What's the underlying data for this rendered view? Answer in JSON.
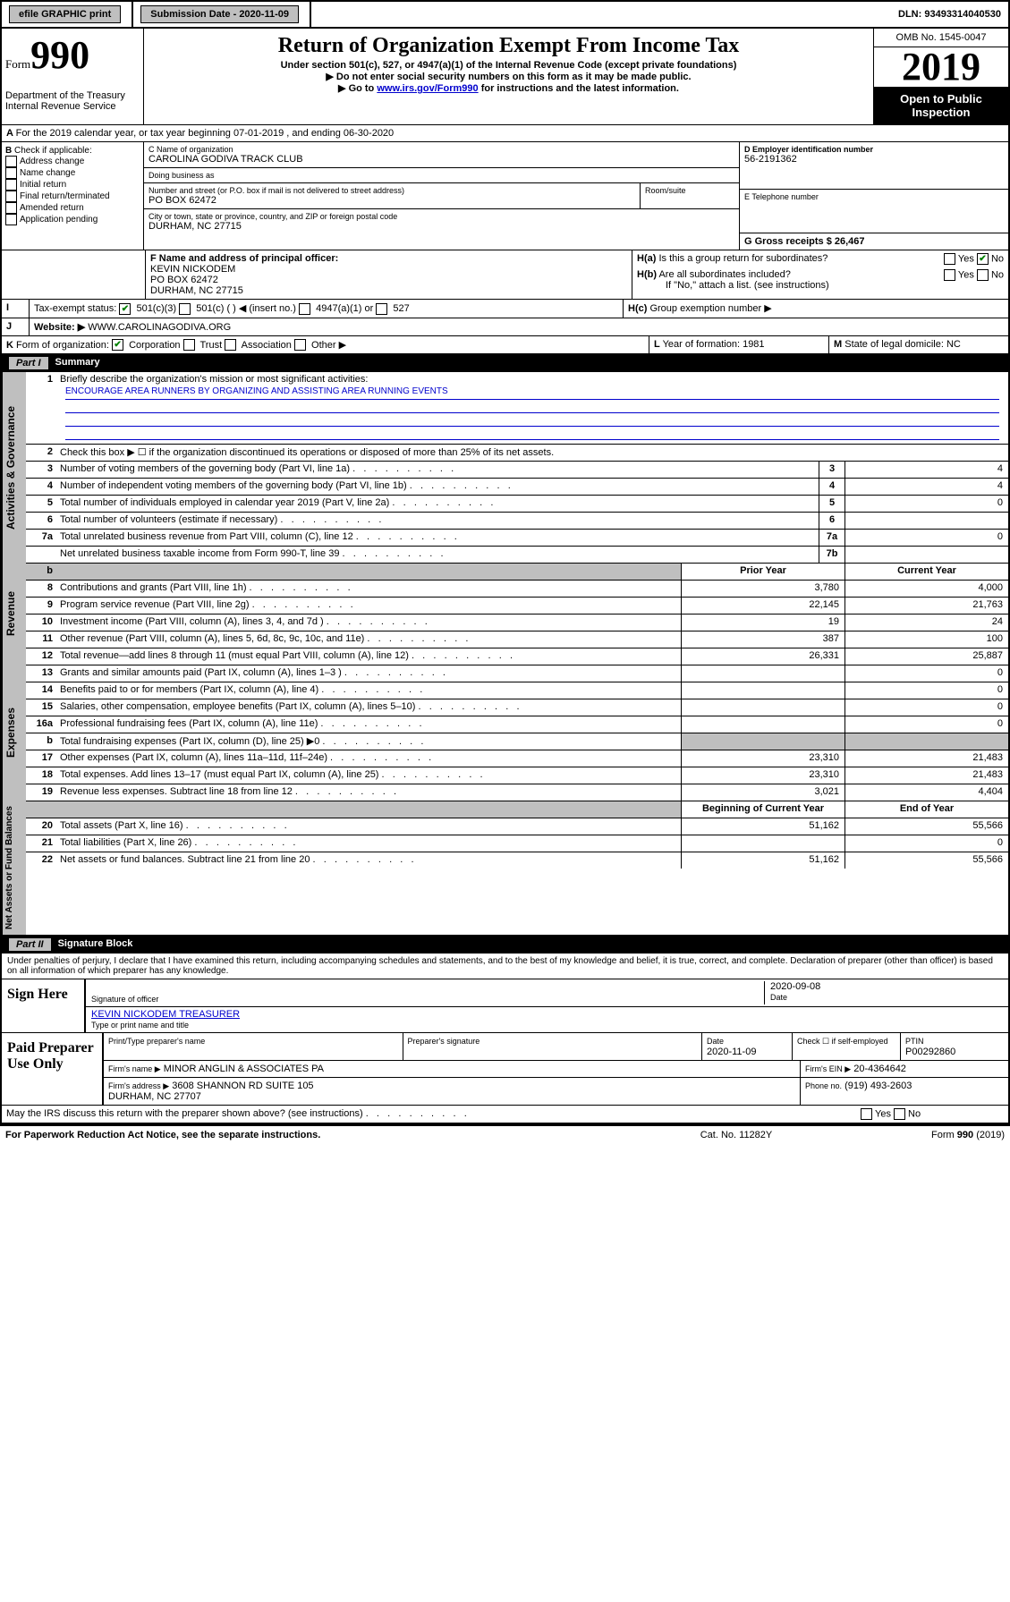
{
  "topbar": {
    "efile": "efile GRAPHIC print",
    "submission_label": "Submission Date - 2020-11-09",
    "dln_label": "DLN: 93493314040530"
  },
  "header": {
    "form_prefix": "Form",
    "form_number": "990",
    "dept": "Department of the Treasury\nInternal Revenue Service",
    "title": "Return of Organization Exempt From Income Tax",
    "subtitle": "Under section 501(c), 527, or 4947(a)(1) of the Internal Revenue Code (except private foundations)",
    "note1": "Do not enter social security numbers on this form as it may be made public.",
    "note2_pre": "Go to ",
    "note2_link": "www.irs.gov/Form990",
    "note2_post": " for instructions and the latest information.",
    "omb": "OMB No. 1545-0047",
    "year": "2019",
    "open_public": "Open to Public Inspection"
  },
  "A_period": "For the 2019 calendar year, or tax year beginning 07-01-2019   , and ending 06-30-2020",
  "B": {
    "label": "Check if applicable:",
    "items": [
      "Address change",
      "Name change",
      "Initial return",
      "Final return/terminated",
      "Amended return",
      "Application pending"
    ]
  },
  "C": {
    "name_label": "C Name of organization",
    "name": "CAROLINA GODIVA TRACK CLUB",
    "dba_label": "Doing business as",
    "street_label": "Number and street (or P.O. box if mail is not delivered to street address)",
    "room_label": "Room/suite",
    "street": "PO BOX 62472",
    "city_label": "City or town, state or province, country, and ZIP or foreign postal code",
    "city": "DURHAM, NC  27715"
  },
  "D": {
    "label": "D Employer identification number",
    "value": "56-2191362"
  },
  "E": {
    "label": "E Telephone number",
    "value": ""
  },
  "G": {
    "label": "G Gross receipts $ 26,467"
  },
  "F": {
    "label": "F  Name and address of principal officer:",
    "name": "KEVIN NICKODEM",
    "addr1": "PO BOX 62472",
    "addr2": "DURHAM, NC  27715"
  },
  "H": {
    "a": "Is this a group return for subordinates?",
    "b": "Are all subordinates included?",
    "b_note": "If \"No,\" attach a list. (see instructions)",
    "c": "Group exemption number ▶"
  },
  "I": {
    "label": "Tax-exempt status:",
    "opts": [
      "501(c)(3)",
      "501(c) (   ) ◀ (insert no.)",
      "4947(a)(1) or",
      "527"
    ]
  },
  "J": {
    "label": "Website: ▶",
    "value": "WWW.CAROLINAGODIVA.ORG"
  },
  "K": {
    "label": "Form of organization:",
    "opts": [
      "Corporation",
      "Trust",
      "Association",
      "Other ▶"
    ]
  },
  "L": {
    "label": "Year of formation: 1981"
  },
  "M": {
    "label": "State of legal domicile: NC"
  },
  "partI": {
    "title": "Summary",
    "line1_label": "Briefly describe the organization's mission or most significant activities:",
    "mission": "ENCOURAGE AREA RUNNERS BY ORGANIZING AND ASSISTING AREA RUNNING EVENTS",
    "line2": "Check this box ▶ ☐  if the organization discontinued its operations or disposed of more than 25% of its net assets.",
    "governance_rows": [
      {
        "n": "3",
        "d": "Number of voting members of the governing body (Part VI, line 1a)",
        "box": "3",
        "v": "4"
      },
      {
        "n": "4",
        "d": "Number of independent voting members of the governing body (Part VI, line 1b)",
        "box": "4",
        "v": "4"
      },
      {
        "n": "5",
        "d": "Total number of individuals employed in calendar year 2019 (Part V, line 2a)",
        "box": "5",
        "v": "0"
      },
      {
        "n": "6",
        "d": "Total number of volunteers (estimate if necessary)",
        "box": "6",
        "v": ""
      },
      {
        "n": "7a",
        "d": "Total unrelated business revenue from Part VIII, column (C), line 12",
        "box": "7a",
        "v": "0"
      },
      {
        "n": "",
        "d": "Net unrelated business taxable income from Form 990-T, line 39",
        "box": "7b",
        "v": ""
      }
    ],
    "col_prior": "Prior Year",
    "col_current": "Current Year",
    "revenue_rows": [
      {
        "n": "8",
        "d": "Contributions and grants (Part VIII, line 1h)",
        "p": "3,780",
        "c": "4,000"
      },
      {
        "n": "9",
        "d": "Program service revenue (Part VIII, line 2g)",
        "p": "22,145",
        "c": "21,763"
      },
      {
        "n": "10",
        "d": "Investment income (Part VIII, column (A), lines 3, 4, and 7d )",
        "p": "19",
        "c": "24"
      },
      {
        "n": "11",
        "d": "Other revenue (Part VIII, column (A), lines 5, 6d, 8c, 9c, 10c, and 11e)",
        "p": "387",
        "c": "100"
      },
      {
        "n": "12",
        "d": "Total revenue—add lines 8 through 11 (must equal Part VIII, column (A), line 12)",
        "p": "26,331",
        "c": "25,887"
      }
    ],
    "expense_rows": [
      {
        "n": "13",
        "d": "Grants and similar amounts paid (Part IX, column (A), lines 1–3 )",
        "p": "",
        "c": "0"
      },
      {
        "n": "14",
        "d": "Benefits paid to or for members (Part IX, column (A), line 4)",
        "p": "",
        "c": "0"
      },
      {
        "n": "15",
        "d": "Salaries, other compensation, employee benefits (Part IX, column (A), lines 5–10)",
        "p": "",
        "c": "0"
      },
      {
        "n": "16a",
        "d": "Professional fundraising fees (Part IX, column (A), line 11e)",
        "p": "",
        "c": "0"
      },
      {
        "n": "b",
        "d": "Total fundraising expenses (Part IX, column (D), line 25) ▶0",
        "p": "",
        "c": "",
        "shade": true
      },
      {
        "n": "17",
        "d": "Other expenses (Part IX, column (A), lines 11a–11d, 11f–24e)",
        "p": "23,310",
        "c": "21,483"
      },
      {
        "n": "18",
        "d": "Total expenses. Add lines 13–17 (must equal Part IX, column (A), line 25)",
        "p": "23,310",
        "c": "21,483"
      },
      {
        "n": "19",
        "d": "Revenue less expenses. Subtract line 18 from line 12",
        "p": "3,021",
        "c": "4,404"
      }
    ],
    "col_begin": "Beginning of Current Year",
    "col_end": "End of Year",
    "netassets_rows": [
      {
        "n": "20",
        "d": "Total assets (Part X, line 16)",
        "p": "51,162",
        "c": "55,566"
      },
      {
        "n": "21",
        "d": "Total liabilities (Part X, line 26)",
        "p": "",
        "c": "0"
      },
      {
        "n": "22",
        "d": "Net assets or fund balances. Subtract line 21 from line 20",
        "p": "51,162",
        "c": "55,566"
      }
    ]
  },
  "partII": {
    "title": "Signature Block",
    "declaration": "Under penalties of perjury, I declare that I have examined this return, including accompanying schedules and statements, and to the best of my knowledge and belief, it is true, correct, and complete. Declaration of preparer (other than officer) is based on all information of which preparer has any knowledge.",
    "sign_here": "Sign Here",
    "sig_officer_label": "Signature of officer",
    "sig_date": "2020-09-08",
    "date_label": "Date",
    "officer_name": "KEVIN NICKODEM  TREASURER",
    "officer_type_label": "Type or print name and title",
    "paid_label": "Paid Preparer Use Only",
    "prep_name_label": "Print/Type preparer's name",
    "prep_sig_label": "Preparer's signature",
    "prep_date_label": "Date",
    "prep_date": "2020-11-09",
    "check_self": "Check ☐ if self-employed",
    "ptin_label": "PTIN",
    "ptin": "P00292860",
    "firm_name_label": "Firm's name    ▶",
    "firm_name": "MINOR ANGLIN & ASSOCIATES PA",
    "firm_ein_label": "Firm's EIN ▶",
    "firm_ein": "20-4364642",
    "firm_addr_label": "Firm's address ▶",
    "firm_addr": "3608 SHANNON RD SUITE 105\nDURHAM, NC  27707",
    "phone_label": "Phone no.",
    "phone": "(919) 493-2603",
    "discuss": "May the IRS discuss this return with the preparer shown above? (see instructions)"
  },
  "footer": {
    "left": "For Paperwork Reduction Act Notice, see the separate instructions.",
    "center": "Cat. No. 11282Y",
    "right": "Form 990 (2019)"
  }
}
